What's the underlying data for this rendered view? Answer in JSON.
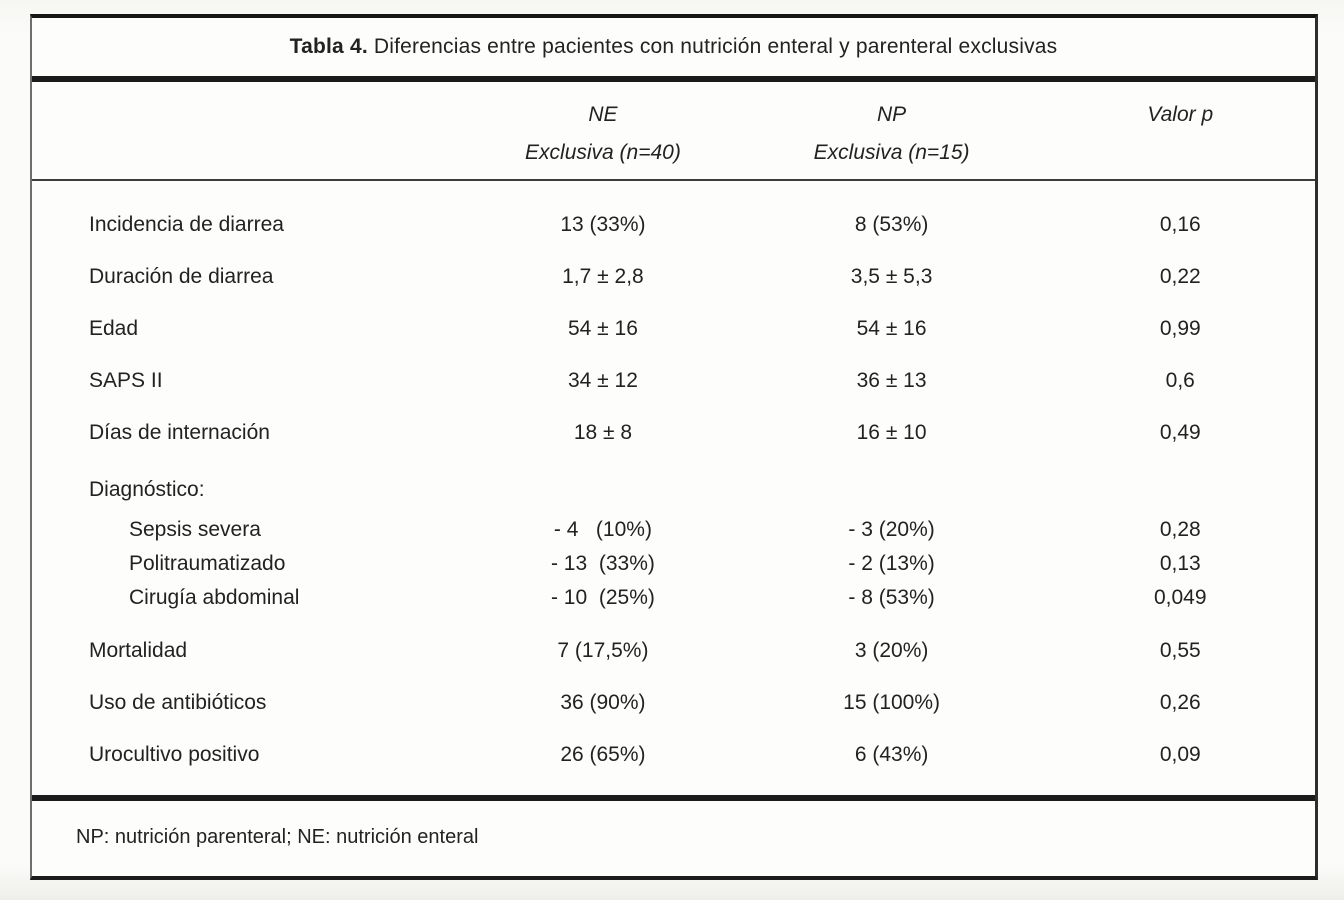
{
  "table": {
    "title_bold": "Tabla 4.",
    "title_rest": " Diferencias entre pacientes con nutrición enteral y parenteral exclusivas",
    "columns": {
      "ne_line1": "NE",
      "ne_line2": "Exclusiva (n=40)",
      "np_line1": "NP",
      "np_line2": "Exclusiva (n=15)",
      "p_label": "Valor p"
    },
    "rows": [
      {
        "label": "Incidencia de diarrea",
        "ne": "13 (33%)",
        "np": "8 (53%)",
        "p": "0,16"
      },
      {
        "label": "Duración de diarrea",
        "ne": "1,7 ± 2,8",
        "np": "3,5 ± 5,3",
        "p": "0,22"
      },
      {
        "label": "Edad",
        "ne": "54 ± 16",
        "np": "54 ± 16",
        "p": "0,99"
      },
      {
        "label": "SAPS II",
        "ne": "34 ± 12",
        "np": "36 ± 13",
        "p": "0,6"
      },
      {
        "label": "Días de internación",
        "ne": "18 ± 8",
        "np": "16 ± 10",
        "p": "0,49"
      },
      {
        "label": "Diagnóstico:",
        "ne": "",
        "np": "",
        "p": ""
      },
      {
        "label": "Sepsis severa",
        "ne": "- 4   (10%)",
        "np": "- 3 (20%)",
        "p": "0,28"
      },
      {
        "label": "Politraumatizado",
        "ne": "- 13  (33%)",
        "np": "- 2 (13%)",
        "p": "0,13"
      },
      {
        "label": "Cirugía abdominal",
        "ne": "- 10  (25%)",
        "np": "- 8 (53%)",
        "p": "0,049"
      },
      {
        "label": "Mortalidad",
        "ne": "7 (17,5%)",
        "np": "3 (20%)",
        "p": "0,55"
      },
      {
        "label": "Uso de antibióticos",
        "ne": "36 (90%)",
        "np": "15 (100%)",
        "p": "0,26"
      },
      {
        "label": "Urocultivo positivo",
        "ne": "26 (65%)",
        "np": "6 (43%)",
        "p": "0,09"
      }
    ],
    "footnote": "NP: nutrición parenteral; NE: nutrición enteral"
  },
  "colors": {
    "ink": "#222222",
    "rule": "#1b1b1b",
    "paper": "#fdfdfc",
    "page_background": "#f4f4f1"
  }
}
